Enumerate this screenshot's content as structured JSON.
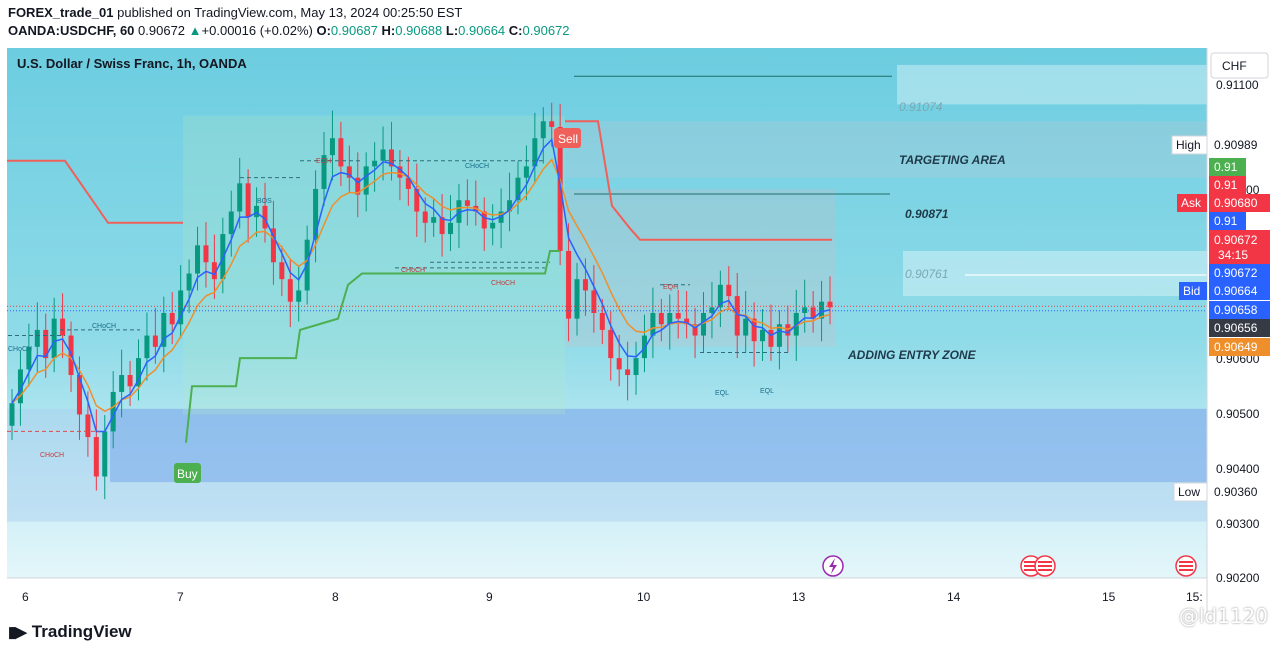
{
  "header": {
    "author": "FOREX_trade_01",
    "published_text": " published on TradingView.com, May 13, 2024 00:25:50 EST",
    "symbol": "OANDA:USDCHF, 60",
    "last": "0.90672",
    "change_arrow": "▲",
    "change": "+0.00016 (+0.02%)",
    "o_label": "O:",
    "o": "0.90687",
    "h_label": "H:",
    "h": "0.90688",
    "l_label": "L:",
    "l": "0.90664",
    "c_label": "C:",
    "c": "0.90672"
  },
  "chart_title": "U.S. Dollar / Swiss Franc, 1h, OANDA",
  "currency_button": "CHF",
  "footer": {
    "brand": "TradingView",
    "watermark": "@ld1120"
  },
  "colors": {
    "up": "#089981",
    "down": "#f23645",
    "bg_top": "#74d2e2",
    "bg_bottom": "#d8f2f8",
    "zone_blue": "#9ec9f0",
    "supertrend_down": "#f0605a",
    "supertrend_up": "#4caf50",
    "ema_fast": "#2962ff",
    "ema_slow": "#ef8f2c"
  },
  "annotations": {
    "sell": "Sell",
    "buy": "Buy",
    "level_top": "0.91074",
    "targeting": "TARGETING AREA",
    "level_mid": "0.90871",
    "level_761": "0.90761",
    "entry": "ADDING ENTRY ZONE",
    "structure": [
      "CHoCH",
      "CHoCH",
      "CHoCH",
      "BOS",
      "EQH",
      "CHoCH",
      "CHoCH",
      "CHoCH",
      "EQH",
      "EQL",
      "EQL"
    ]
  },
  "price_tags": {
    "high_label": "High",
    "high": "0.90989",
    "t1": "0.91",
    "t2": "0.91",
    "ask_label": "Ask",
    "ask": "0.90680",
    "t3": "0.91",
    "last": "0.90672",
    "countdown": "34:15",
    "t4": "0.90672",
    "bid_label": "Bid",
    "bid": "0.90664",
    "t5": "0.90658",
    "t6": "0.90656",
    "t7": "0.90649",
    "low_label": "Low",
    "low": "0.90360"
  },
  "chart_data": {
    "type": "candlestick",
    "title": "U.S. Dollar / Swiss Franc, 1h, OANDA",
    "x_tick_labels": [
      "6",
      "7",
      "8",
      "9",
      "10",
      "13",
      "14",
      "15",
      "15:"
    ],
    "y_tick_labels": [
      "0.91100",
      "0.91000",
      "0.90600",
      "0.90500",
      "0.90400",
      "0.90300",
      "0.90200"
    ],
    "ylim": [
      0.9019,
      0.9113
    ],
    "ohlc_close": [
      0.905,
      0.9056,
      0.906,
      0.9063,
      0.9058,
      0.9065,
      0.9062,
      0.9055,
      0.9048,
      0.9044,
      0.9037,
      0.9045,
      0.9052,
      0.9055,
      0.9053,
      0.9058,
      0.9062,
      0.906,
      0.9066,
      0.9064,
      0.907,
      0.9073,
      0.9078,
      0.9075,
      0.9072,
      0.908,
      0.9084,
      0.9089,
      0.9083,
      0.9085,
      0.9081,
      0.9075,
      0.9072,
      0.9068,
      0.907,
      0.9079,
      0.9088,
      0.9094,
      0.9097,
      0.9092,
      0.909,
      0.9087,
      0.9092,
      0.9093,
      0.9095,
      0.9092,
      0.909,
      0.9088,
      0.9084,
      0.9082,
      0.9083,
      0.908,
      0.9082,
      0.9086,
      0.9085,
      0.9084,
      0.9081,
      0.9082,
      0.9084,
      0.9086,
      0.909,
      0.9092,
      0.9097,
      0.91,
      0.9099,
      0.9077,
      0.9065,
      0.9072,
      0.907,
      0.9066,
      0.9063,
      0.9058,
      0.9056,
      0.9055,
      0.9058,
      0.9062,
      0.9066,
      0.9064,
      0.9066,
      0.9065,
      0.9064,
      0.9062,
      0.9066,
      0.9067,
      0.9071,
      0.9069,
      0.9062,
      0.9065,
      0.9061,
      0.9063,
      0.906,
      0.9064,
      0.9062,
      0.9066,
      0.9067,
      0.9065,
      0.9068,
      0.9067
    ],
    "series": [
      {
        "type": "candles"
      },
      {
        "type": "ema"
      },
      {
        "type": "ema"
      },
      {
        "type": "supertrend"
      }
    ],
    "zones": [
      {
        "label": "0.91074",
        "from": 0.9103,
        "to": 0.911
      },
      {
        "label": "TARGETING AREA",
        "from": 0.909,
        "to": 0.91
      },
      {
        "label": "0.90761",
        "from": 0.9069,
        "to": 0.9077
      },
      {
        "from": 0.9036,
        "to": 0.9049
      },
      {
        "from": 0.9029,
        "to": 0.9049
      }
    ],
    "levels": [
      0.90871,
      0.9108
    ]
  }
}
